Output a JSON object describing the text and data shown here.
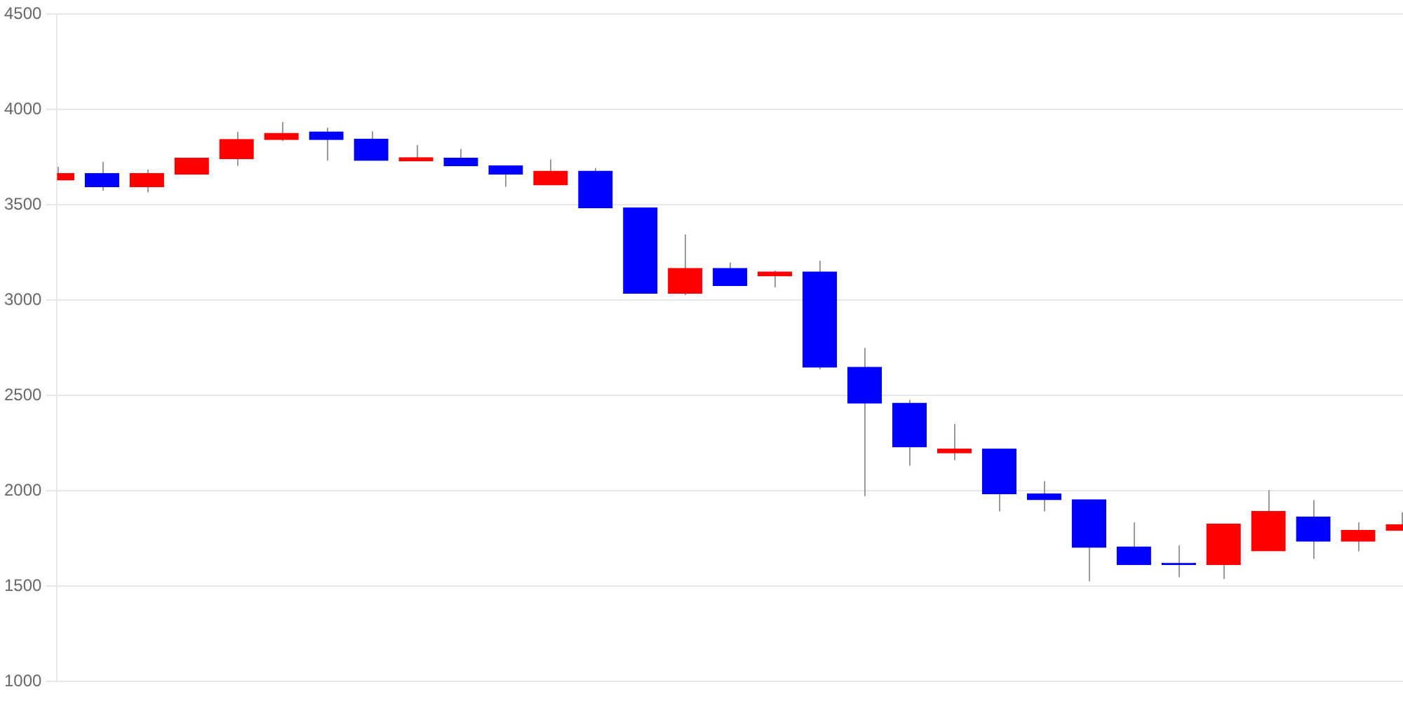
{
  "chart_data": {
    "type": "candlestick",
    "categories": [
      null,
      null,
      null,
      null,
      null,
      null,
      null,
      null,
      null,
      null,
      null,
      null,
      null,
      null,
      null,
      null,
      null,
      null,
      null,
      null,
      null,
      null,
      null,
      null,
      null,
      null,
      null,
      null,
      null,
      null,
      null
    ],
    "ohlc": [
      [
        3630,
        3700,
        3630,
        3665
      ],
      [
        3665,
        3725,
        3575,
        3595
      ],
      [
        3595,
        3685,
        3565,
        3665
      ],
      [
        3662,
        3745,
        3662,
        3745
      ],
      [
        3743,
        3883,
        3705,
        3843
      ],
      [
        3843,
        3935,
        3835,
        3876
      ],
      [
        3883,
        3905,
        3733,
        3843
      ],
      [
        3845,
        3886,
        3733,
        3733
      ],
      [
        3731,
        3814,
        3731,
        3748
      ],
      [
        3745,
        3793,
        3705,
        3705
      ],
      [
        3705,
        3705,
        3595,
        3662
      ],
      [
        3605,
        3738,
        3605,
        3677
      ],
      [
        3677,
        3693,
        3484,
        3484
      ],
      [
        3484,
        3484,
        3036,
        3036
      ],
      [
        3036,
        3345,
        3027,
        3167
      ],
      [
        3167,
        3198,
        3077,
        3077
      ],
      [
        3127,
        3155,
        3067,
        3148
      ],
      [
        3148,
        3207,
        2638,
        2648
      ],
      [
        2648,
        2750,
        1972,
        2460
      ],
      [
        2460,
        2477,
        2132,
        2231
      ],
      [
        2199,
        2351,
        2160,
        2220
      ],
      [
        2220,
        2220,
        1892,
        1984
      ],
      [
        1984,
        2051,
        1892,
        1953
      ],
      [
        1953,
        1953,
        1525,
        1703
      ],
      [
        1706,
        1834,
        1613,
        1613
      ],
      [
        1613,
        1713,
        1546,
        1613
      ],
      [
        1613,
        1825,
        1537,
        1825
      ],
      [
        1685,
        2003,
        1685,
        1892
      ],
      [
        1863,
        1951,
        1644,
        1735
      ],
      [
        1735,
        1834,
        1682,
        1792
      ],
      [
        1792,
        1886,
        1792,
        1822
      ]
    ],
    "colors": [
      "#ff0000",
      "#0000ff",
      "#ff0000",
      "#ff0000",
      "#ff0000",
      "#ff0000",
      "#0000ff",
      "#0000ff",
      "#ff0000",
      "#0000ff",
      "#0000ff",
      "#ff0000",
      "#0000ff",
      "#0000ff",
      "#ff0000",
      "#0000ff",
      "#ff0000",
      "#0000ff",
      "#0000ff",
      "#0000ff",
      "#ff0000",
      "#0000ff",
      "#0000ff",
      "#0000ff",
      "#0000ff",
      "#0000ff",
      "#ff0000",
      "#ff0000",
      "#0000ff",
      "#ff0000",
      "#ff0000"
    ],
    "ylim": [
      1000,
      4500
    ],
    "yticks": [
      1000,
      1500,
      2000,
      2500,
      3000,
      3500,
      4000,
      4500
    ],
    "grid": "y",
    "tick_labels": "y",
    "legend": false
  }
}
